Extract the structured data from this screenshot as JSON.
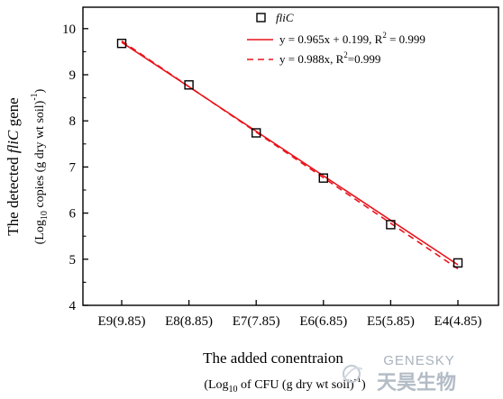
{
  "chart_data": {
    "type": "scatter",
    "categories": [
      "E9(9.85)",
      "E8(8.85)",
      "E7(7.85)",
      "E6(6.85)",
      "E5(5.85)",
      "E4(4.85)"
    ],
    "x": [
      9.85,
      8.85,
      7.85,
      6.85,
      5.85,
      4.85
    ],
    "series": [
      {
        "name": "fliC",
        "values": [
          9.68,
          8.78,
          7.74,
          6.76,
          5.75,
          4.92
        ],
        "marker": "open-square",
        "color": "#000000"
      }
    ],
    "fits": [
      {
        "label": "y = 0.965x + 0.199, R² = 0.999",
        "label_parts": [
          "y = 0.965x + 0.199, R",
          "2",
          " = 0.999"
        ],
        "slope": 0.965,
        "intercept": 0.199,
        "style": "solid",
        "color": "#e8141b"
      },
      {
        "label": "y = 0.988x, R²=0.999",
        "label_parts": [
          "y = 0.988x, R",
          "2",
          "=0.999"
        ],
        "slope": 0.988,
        "intercept": 0,
        "style": "dashed",
        "color": "#e8141b"
      }
    ],
    "ylim": [
      4,
      10.5
    ],
    "yticks": [
      4,
      5,
      6,
      7,
      8,
      9,
      10
    ],
    "xlabel": "The added conentraion",
    "xlabel_sub": {
      "pre": "(Log",
      "sub": "10",
      "mid": " of CFU (g dry wt soil)",
      "sup": "-1",
      "post": ")"
    },
    "ylabel": {
      "pre": "The detected ",
      "italic": "fliC",
      "post": " gene"
    },
    "ylabel_sub": {
      "pre": "(Log",
      "sub": "10",
      "mid": " copies (g dry wt soil)",
      "sup": "-1",
      "post": ")"
    },
    "legend_position": "top-right",
    "grid": false
  },
  "watermark": {
    "latin": "GENESKY",
    "cjk": "天昊生物",
    "color": "#aab3be"
  }
}
